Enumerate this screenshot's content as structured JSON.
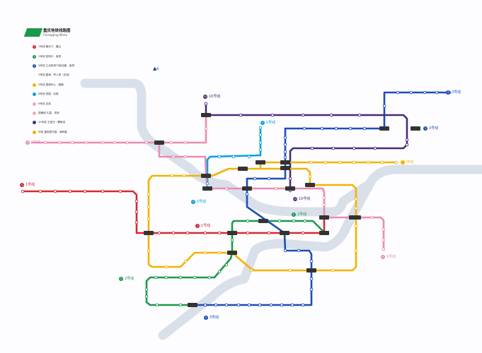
{
  "legend": {
    "title": "重庆地铁线路图",
    "subtitle": "Chongqing Metro",
    "items": [
      {
        "badge": "1",
        "label": "1号线  朝天门 - 璧山",
        "color": "#d7282f"
      },
      {
        "badge": "2",
        "label": "2号线  较场口 - 鱼洞",
        "color": "#1a9a4a"
      },
      {
        "badge": "3",
        "label": "3号线  江北机场T3航站楼 - 鱼洞",
        "color": "#1d4fb5"
      },
      {
        "badge": "",
        "label": "3号线  碧津 - 举人坝（支线）",
        "color": "#ffffff"
      },
      {
        "badge": "",
        "label": "5号线  园博中心 - 跳磴",
        "color": "#f0b400"
      },
      {
        "badge": "",
        "label": "6号线  茶园 - 北碚",
        "color": "#0aa0d8"
      },
      {
        "badge": "",
        "label": "6号线  支线",
        "color": "#f2a7c6"
      },
      {
        "badge": "",
        "label": "国博线  礼嘉 - 悦来",
        "color": "#f2a7c6"
      },
      {
        "badge": "",
        "label": "10号线  王家庄 - 鲤鱼池",
        "color": "#4a2a7a"
      },
      {
        "badge": "",
        "label": "环线  重庆图书馆 - 海峡路",
        "color": "#f0b400"
      }
    ]
  },
  "north_label": "N",
  "lines": [
    {
      "id": "line1",
      "color": "#d7282f",
      "points": [
        [
          32,
          271
        ],
        [
          188,
          271
        ],
        [
          193,
          276
        ],
        [
          193,
          330
        ],
        [
          458,
          330
        ],
        [
          458,
          308
        ]
      ],
      "stations": [
        [
          32,
          271
        ],
        [
          57,
          271
        ],
        [
          78,
          271
        ],
        [
          99,
          271
        ],
        [
          120,
          271
        ],
        [
          145,
          271
        ],
        [
          170,
          271
        ],
        [
          193,
          285
        ],
        [
          193,
          300
        ],
        [
          193,
          315
        ],
        [
          225,
          330
        ],
        [
          245,
          330
        ],
        [
          265,
          330
        ],
        [
          290,
          330
        ],
        [
          310,
          330
        ],
        [
          350,
          330
        ],
        [
          380,
          330
        ],
        [
          428,
          330
        ]
      ]
    },
    {
      "id": "line2",
      "color": "#1a9a4a",
      "points": [
        [
          457,
          328
        ],
        [
          442,
          313
        ],
        [
          330,
          313
        ],
        [
          328,
          316
        ],
        [
          328,
          358
        ],
        [
          326,
          366
        ],
        [
          303,
          393
        ],
        [
          212,
          393
        ],
        [
          207,
          398
        ],
        [
          207,
          428
        ],
        [
          212,
          432
        ],
        [
          272,
          432
        ]
      ],
      "stations": [
        [
          350,
          313
        ],
        [
          395,
          313
        ],
        [
          415,
          313
        ],
        [
          431,
          313
        ],
        [
          328,
          340
        ],
        [
          320,
          375
        ],
        [
          310,
          385
        ],
        [
          296,
          393
        ],
        [
          275,
          393
        ],
        [
          255,
          393
        ],
        [
          235,
          393
        ],
        [
          220,
          393
        ],
        [
          207,
          410
        ],
        [
          207,
          420
        ],
        [
          222,
          432
        ],
        [
          255,
          432
        ]
      ]
    },
    {
      "id": "line3",
      "color": "#1d4fb5",
      "points": [
        [
          635,
          131
        ],
        [
          543,
          131
        ],
        [
          543,
          182
        ],
        [
          403,
          182
        ],
        [
          403,
          253
        ],
        [
          349,
          253
        ],
        [
          349,
          293
        ],
        [
          402,
          330
        ],
        [
          403,
          355
        ],
        [
          437,
          355
        ],
        [
          440,
          360
        ],
        [
          440,
          432
        ],
        [
          272,
          432
        ]
      ],
      "stations": [
        [
          562,
          131
        ],
        [
          581,
          131
        ],
        [
          600,
          131
        ],
        [
          617,
          131
        ],
        [
          635,
          131
        ],
        [
          543,
          150
        ],
        [
          430,
          182
        ],
        [
          455,
          182
        ],
        [
          475,
          182
        ],
        [
          495,
          182
        ],
        [
          515,
          182
        ],
        [
          403,
          195
        ],
        [
          403,
          205
        ],
        [
          403,
          215
        ],
        [
          403,
          223
        ],
        [
          380,
          253
        ],
        [
          360,
          253
        ],
        [
          349,
          275
        ],
        [
          403,
          355
        ],
        [
          422,
          355
        ],
        [
          440,
          370
        ],
        [
          440,
          395
        ],
        [
          440,
          410
        ],
        [
          290,
          432
        ],
        [
          305,
          432
        ],
        [
          320,
          432
        ],
        [
          337,
          432
        ],
        [
          352,
          432
        ],
        [
          367,
          432
        ],
        [
          383,
          432
        ],
        [
          398,
          432
        ],
        [
          413,
          432
        ],
        [
          428,
          432
        ]
      ]
    },
    {
      "id": "line10",
      "color": "#4a2a7a",
      "points": [
        [
          291,
          147
        ],
        [
          291,
          163
        ],
        [
          570,
          163
        ],
        [
          575,
          168
        ],
        [
          575,
          205
        ],
        [
          570,
          210
        ],
        [
          414,
          210
        ],
        [
          410,
          214
        ],
        [
          410,
          270
        ]
      ],
      "stations": [
        [
          291,
          147
        ],
        [
          340,
          163
        ],
        [
          385,
          163
        ],
        [
          428,
          163
        ],
        [
          468,
          163
        ],
        [
          508,
          163
        ],
        [
          575,
          198
        ],
        [
          575,
          205
        ],
        [
          441,
          210
        ],
        [
          471,
          210
        ],
        [
          500,
          210
        ],
        [
          530,
          210
        ],
        [
          410,
          253
        ],
        [
          410,
          270
        ]
      ]
    },
    {
      "id": "line6",
      "color": "#0aa0d8",
      "points": [
        [
          368,
          181
        ],
        [
          368,
          220
        ],
        [
          297,
          222
        ],
        [
          293,
          226
        ],
        [
          293,
          260
        ]
      ],
      "stations": [
        [
          368,
          181
        ],
        [
          368,
          191
        ],
        [
          368,
          202
        ],
        [
          368,
          212
        ],
        [
          352,
          222
        ],
        [
          330,
          222
        ],
        [
          310,
          222
        ],
        [
          293,
          260
        ]
      ]
    },
    {
      "id": "pink",
      "color": "#e98bb3",
      "points": [
        [
          44,
          202
        ],
        [
          291,
          202
        ],
        [
          291,
          163
        ]
      ],
      "stations": [
        [
          64,
          202
        ],
        [
          84,
          202
        ],
        [
          102,
          202
        ],
        [
          122,
          202
        ],
        [
          145,
          202
        ],
        [
          162,
          202
        ],
        [
          180,
          202
        ],
        [
          207,
          202
        ],
        [
          242,
          202
        ],
        [
          262,
          202
        ],
        [
          291,
          182
        ]
      ]
    },
    {
      "id": "pink2",
      "color": "#e98bb3",
      "points": [
        [
          225,
          202
        ],
        [
          225,
          222
        ],
        [
          290,
          222
        ],
        [
          291,
          248
        ],
        [
          293,
          267
        ],
        [
          456,
          267
        ],
        [
          458,
          272
        ],
        [
          458,
          308
        ],
        [
          538,
          308
        ],
        [
          542,
          312
        ],
        [
          542,
          353
        ]
      ],
      "stations": [
        [
          245,
          222
        ],
        [
          262,
          222
        ],
        [
          320,
          267
        ],
        [
          390,
          267
        ],
        [
          458,
          280
        ],
        [
          458,
          290
        ],
        [
          525,
          308
        ],
        [
          542,
          325
        ],
        [
          542,
          340
        ],
        [
          542,
          353
        ]
      ]
    },
    {
      "id": "ring",
      "color": "#f0b400",
      "points": [
        [
          210,
          375
        ],
        [
          210,
          255
        ],
        [
          215,
          249
        ],
        [
          300,
          249
        ],
        [
          323,
          239
        ],
        [
          433,
          239
        ],
        [
          438,
          244
        ],
        [
          438,
          262
        ],
        [
          498,
          262
        ],
        [
          503,
          267
        ],
        [
          503,
          378
        ],
        [
          498,
          383
        ],
        [
          360,
          383
        ],
        [
          355,
          381
        ],
        [
          328,
          358
        ],
        [
          275,
          358
        ],
        [
          255,
          378
        ],
        [
          215,
          378
        ],
        [
          210,
          375
        ]
      ],
      "stations": [
        [
          243,
          249
        ],
        [
          210,
          275
        ],
        [
          210,
          293
        ],
        [
          210,
          310
        ],
        [
          210,
          355
        ],
        [
          235,
          378
        ],
        [
          262,
          370
        ],
        [
          290,
          358
        ],
        [
          310,
          358
        ],
        [
          355,
          383
        ],
        [
          410,
          383
        ],
        [
          470,
          383
        ],
        [
          503,
          282
        ],
        [
          503,
          295
        ],
        [
          503,
          320
        ],
        [
          503,
          355
        ],
        [
          338,
          239
        ],
        [
          438,
          250
        ],
        [
          260,
          249
        ]
      ]
    },
    {
      "id": "yellowB",
      "color": "#f0b400",
      "points": [
        [
          368,
          239
        ],
        [
          368,
          230
        ],
        [
          560,
          230
        ]
      ],
      "stations": [
        [
          440,
          230
        ],
        [
          460,
          230
        ],
        [
          480,
          230
        ],
        [
          500,
          230
        ],
        [
          520,
          230
        ],
        [
          540,
          230
        ],
        [
          560,
          230
        ]
      ]
    }
  ],
  "interchanges": [
    [
      225,
      202
    ],
    [
      291,
      163
    ],
    [
      291,
      249
    ],
    [
      293,
      267
    ],
    [
      210,
      330
    ],
    [
      343,
      239
    ],
    [
      368,
      230
    ],
    [
      403,
      230
    ],
    [
      403,
      238
    ],
    [
      349,
      267
    ],
    [
      410,
      267
    ],
    [
      438,
      262
    ],
    [
      458,
      308
    ],
    [
      458,
      330
    ],
    [
      402,
      330
    ],
    [
      372,
      313
    ],
    [
      328,
      330
    ],
    [
      328,
      358
    ],
    [
      440,
      383
    ],
    [
      272,
      432
    ],
    [
      543,
      182
    ],
    [
      587,
      182
    ],
    [
      500,
      308
    ],
    [
      503,
      308
    ]
  ],
  "line_labels": [
    {
      "text": "1号线",
      "badge": "1",
      "color": "#d7282f",
      "pos": "l1a"
    },
    {
      "text": "1号线",
      "badge": "1",
      "color": "#d7282f",
      "pos": "l1b"
    },
    {
      "text": "2号线",
      "badge": "2",
      "color": "#1a9a4a",
      "pos": "l2a"
    },
    {
      "text": "2号线",
      "badge": "2",
      "color": "#1a9a4a",
      "pos": "l2b"
    },
    {
      "text": "3号线",
      "badge": "3",
      "color": "#1d4fb5",
      "pos": "l3a"
    },
    {
      "text": "3号线",
      "badge": "3",
      "color": "#1d4fb5",
      "pos": "l3b"
    },
    {
      "text": "3号线",
      "badge": "3",
      "color": "#1d4fb5",
      "pos": "l3c"
    },
    {
      "text": "10号线",
      "badge": "10",
      "color": "#4a2a7a",
      "pos": "l10a"
    },
    {
      "text": "10号线",
      "badge": "10",
      "color": "#4a2a7a",
      "pos": "l10b"
    },
    {
      "text": "5号线",
      "badge": "5",
      "color": "#0aa0d8",
      "pos": "l5a"
    },
    {
      "text": "5号线",
      "badge": "5",
      "color": "#0aa0d8",
      "pos": "l5b"
    },
    {
      "text": "6号线",
      "badge": "6",
      "color": "#e98bb3",
      "pos": "l6a"
    },
    {
      "text": "6号线",
      "badge": "6",
      "color": "#e98bb3",
      "pos": "l6b"
    },
    {
      "text": "环线",
      "badge": "",
      "color": "#f0b400",
      "pos": "lra"
    }
  ]
}
